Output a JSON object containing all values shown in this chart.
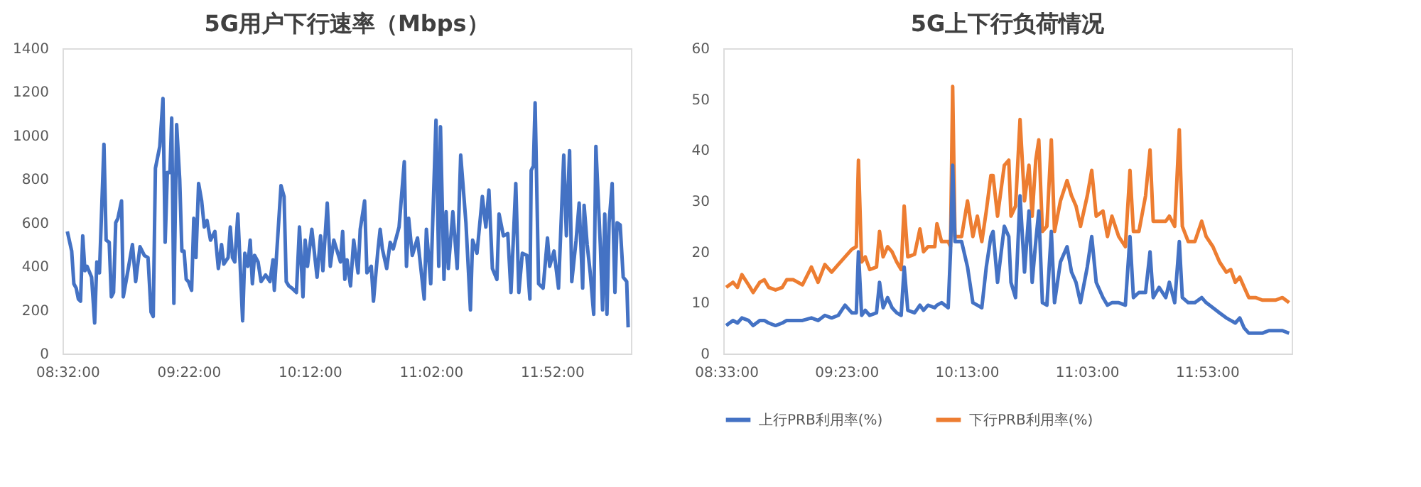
{
  "chart_data": [
    {
      "type": "line",
      "title": "5G用户下行速率（Mbps）",
      "xlim": [
        8.5,
        12.41
      ],
      "ylim": [
        0,
        1400
      ],
      "yticks": [
        0,
        200,
        400,
        600,
        800,
        1000,
        1200,
        1400
      ],
      "xticks": [
        {
          "value": 8.533333,
          "label": "08:32:00"
        },
        {
          "value": 9.366667,
          "label": "09:22:00"
        },
        {
          "value": 10.2,
          "label": "10:12:00"
        },
        {
          "value": 11.033333,
          "label": "11:02:00"
        },
        {
          "value": 11.866667,
          "label": "11:52:00"
        }
      ],
      "grid": false,
      "legend": false,
      "marker": "none",
      "line_style": "solid",
      "x": [
        8.533,
        8.563,
        8.578,
        8.594,
        8.609,
        8.624,
        8.639,
        8.654,
        8.669,
        8.7,
        8.721,
        8.736,
        8.754,
        8.785,
        8.8,
        8.821,
        8.836,
        8.851,
        8.866,
        8.881,
        8.906,
        8.918,
        8.942,
        8.981,
        9.003,
        9.033,
        9.063,
        9.088,
        9.109,
        9.124,
        9.139,
        9.169,
        9.191,
        9.206,
        9.221,
        9.239,
        9.251,
        9.266,
        9.285,
        9.306,
        9.321,
        9.336,
        9.351,
        9.366,
        9.388,
        9.403,
        9.418,
        9.436,
        9.457,
        9.475,
        9.494,
        9.518,
        9.548,
        9.572,
        9.594,
        9.609,
        9.639,
        9.654,
        9.669,
        9.685,
        9.706,
        9.721,
        9.739,
        9.754,
        9.775,
        9.791,
        9.806,
        9.821,
        9.845,
        9.866,
        9.897,
        9.927,
        9.948,
        9.957,
        10.003,
        10.024,
        10.039,
        10.057,
        10.078,
        10.109,
        10.13,
        10.154,
        10.169,
        10.185,
        10.215,
        10.251,
        10.275,
        10.291,
        10.321,
        10.342,
        10.366,
        10.412,
        10.427,
        10.442,
        10.457,
        10.481,
        10.503,
        10.533,
        10.548,
        10.578,
        10.594,
        10.624,
        10.639,
        10.669,
        10.685,
        10.7,
        10.73,
        10.754,
        10.775,
        10.815,
        10.851,
        10.866,
        10.881,
        10.906,
        10.942,
        10.988,
        11.003,
        11.033,
        11.069,
        11.088,
        11.1,
        11.124,
        11.139,
        11.154,
        11.185,
        11.215,
        11.239,
        11.275,
        11.306,
        11.321,
        11.351,
        11.388,
        11.412,
        11.433,
        11.457,
        11.488,
        11.503,
        11.533,
        11.563,
        11.585,
        11.618,
        11.639,
        11.663,
        11.694,
        11.715,
        11.724,
        11.739,
        11.751,
        11.775,
        11.806,
        11.836,
        11.851,
        11.881,
        11.912,
        11.948,
        11.966,
        11.988,
        12.003,
        12.033,
        12.054,
        12.078,
        12.088,
        12.109,
        12.13,
        12.154,
        12.169,
        12.2,
        12.215,
        12.23,
        12.245,
        12.26,
        12.281,
        12.3,
        12.315,
        12.336,
        12.357,
        12.381,
        12.391
      ],
      "series": [
        {
          "color": "#4472c4",
          "values": [
            560,
            470,
            320,
            300,
            250,
            240,
            540,
            380,
            400,
            350,
            140,
            420,
            370,
            960,
            520,
            510,
            260,
            280,
            600,
            620,
            700,
            260,
            350,
            500,
            330,
            490,
            450,
            440,
            190,
            170,
            850,
            950,
            1170,
            510,
            830,
            830,
            1080,
            230,
            1050,
            800,
            470,
            470,
            340,
            330,
            290,
            620,
            440,
            780,
            700,
            580,
            610,
            520,
            560,
            390,
            500,
            410,
            440,
            580,
            440,
            420,
            640,
            420,
            150,
            460,
            400,
            520,
            320,
            450,
            420,
            330,
            360,
            330,
            430,
            290,
            770,
            720,
            330,
            310,
            300,
            280,
            580,
            260,
            520,
            400,
            570,
            350,
            540,
            380,
            690,
            400,
            520,
            420,
            560,
            340,
            430,
            310,
            520,
            370,
            570,
            700,
            370,
            400,
            240,
            470,
            570,
            480,
            390,
            510,
            480,
            580,
            880,
            400,
            620,
            450,
            530,
            250,
            570,
            320,
            1070,
            400,
            1040,
            340,
            650,
            390,
            650,
            390,
            910,
            600,
            200,
            520,
            460,
            720,
            580,
            750,
            390,
            340,
            640,
            540,
            550,
            280,
            780,
            280,
            460,
            450,
            250,
            840,
            860,
            1150,
            320,
            300,
            530,
            400,
            470,
            300,
            910,
            540,
            930,
            330,
            520,
            690,
            300,
            680,
            500,
            370,
            180,
            950,
            490,
            200,
            640,
            180,
            600,
            780,
            280,
            600,
            590,
            350,
            330,
            120
          ]
        }
      ]
    },
    {
      "type": "line",
      "title": "5G上下行负荷情况",
      "xlim": [
        8.53,
        12.47
      ],
      "ylim": [
        0,
        60
      ],
      "yticks": [
        0,
        10,
        20,
        30,
        40,
        50,
        60
      ],
      "xticks": [
        {
          "value": 8.55,
          "label": "08:33:00"
        },
        {
          "value": 9.383333,
          "label": "09:23:00"
        },
        {
          "value": 10.216667,
          "label": "10:13:00"
        },
        {
          "value": 11.05,
          "label": "11:03:00"
        },
        {
          "value": 11.883333,
          "label": "11:53:00"
        }
      ],
      "grid": false,
      "legend": "bottom",
      "marker": "none",
      "line_style": "solid",
      "x": [
        8.55,
        8.597,
        8.628,
        8.659,
        8.705,
        8.737,
        8.783,
        8.814,
        8.845,
        8.892,
        8.939,
        8.97,
        9.016,
        9.079,
        9.141,
        9.187,
        9.234,
        9.281,
        9.327,
        9.374,
        9.421,
        9.452,
        9.467,
        9.489,
        9.514,
        9.545,
        9.592,
        9.613,
        9.638,
        9.669,
        9.7,
        9.732,
        9.763,
        9.784,
        9.809,
        9.856,
        9.893,
        9.918,
        9.949,
        9.996,
        10.011,
        10.043,
        10.089,
        10.105,
        10.12,
        10.136,
        10.182,
        10.223,
        10.26,
        10.291,
        10.322,
        10.353,
        10.385,
        10.4,
        10.431,
        10.478,
        10.509,
        10.524,
        10.556,
        10.587,
        10.618,
        10.649,
        10.671,
        10.696,
        10.717,
        10.742,
        10.773,
        10.804,
        10.826,
        10.867,
        10.913,
        10.944,
        10.975,
        11.006,
        11.053,
        11.084,
        11.115,
        11.162,
        11.193,
        11.224,
        11.271,
        11.317,
        11.349,
        11.373,
        11.411,
        11.457,
        11.488,
        11.51,
        11.551,
        11.597,
        11.622,
        11.659,
        11.691,
        11.712,
        11.753,
        11.799,
        11.846,
        11.877,
        11.924,
        11.97,
        12.017,
        12.048,
        12.079,
        12.11,
        12.141,
        12.173,
        12.219,
        12.266,
        12.312,
        12.359,
        12.406,
        12.452
      ],
      "series": [
        {
          "name": "上行PRB利用率(%)",
          "color": "#4472c4",
          "values": [
            5.5,
            6.5,
            6,
            7,
            6.5,
            5.5,
            6.5,
            6.5,
            6,
            5.5,
            6,
            6.5,
            6.5,
            6.5,
            7,
            6.5,
            7.5,
            7,
            7.5,
            9.5,
            8,
            8,
            20,
            7.5,
            8.5,
            7.5,
            8,
            14,
            9,
            11,
            9,
            8,
            7.5,
            17,
            8.5,
            8,
            9.5,
            8.5,
            9.5,
            9,
            9.5,
            10,
            9,
            20,
            37,
            22,
            22,
            17,
            10,
            9.5,
            9,
            17,
            23,
            24,
            14,
            25,
            23,
            14,
            11,
            31,
            16,
            28,
            14,
            22,
            28,
            10,
            9.5,
            24,
            10,
            18,
            21,
            16,
            14,
            10,
            17,
            23,
            14,
            11,
            9.5,
            10,
            10,
            9.5,
            23,
            11,
            12,
            12,
            20,
            11,
            13,
            11,
            14,
            10,
            22,
            11,
            10,
            10,
            11,
            10,
            9,
            8,
            7,
            6.5,
            6,
            7,
            5,
            4,
            4,
            4,
            4.5,
            4.5,
            4.5,
            4
          ]
        },
        {
          "name": "下行PRB利用率(%)",
          "color": "#ed7d31",
          "values": [
            13,
            14,
            13,
            15.5,
            13.5,
            12,
            14,
            14.5,
            13,
            12.5,
            13,
            14.5,
            14.5,
            13.5,
            17,
            14,
            17.5,
            16,
            17.5,
            19,
            20.5,
            21,
            38,
            18,
            19,
            16.5,
            17,
            24,
            19,
            21,
            20,
            18,
            16.5,
            29,
            19,
            19.5,
            24.5,
            20,
            21,
            21,
            25.5,
            22,
            22,
            21,
            52.5,
            23,
            23,
            30,
            23,
            27,
            22,
            28,
            35,
            35,
            27,
            37,
            38,
            27,
            29,
            46,
            30,
            37,
            27,
            38,
            42,
            24,
            25,
            42,
            24,
            30,
            34,
            31,
            29,
            25,
            31,
            36,
            27,
            28,
            23,
            27,
            23,
            21,
            36,
            24,
            24,
            31,
            40,
            26,
            26,
            26,
            27,
            25,
            44,
            25,
            22,
            22,
            26,
            23,
            21,
            18,
            16,
            16.5,
            14,
            15,
            13,
            11,
            11,
            10.5,
            10.5,
            10.5,
            11,
            10
          ]
        }
      ]
    }
  ]
}
